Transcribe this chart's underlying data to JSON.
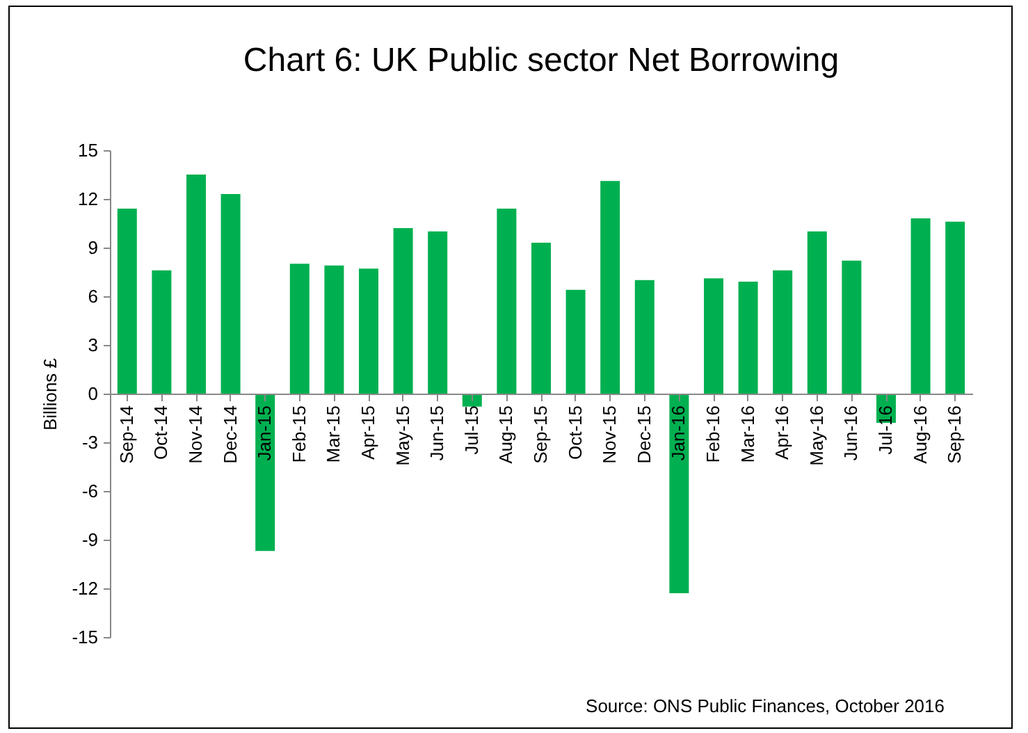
{
  "chart_data": {
    "type": "bar",
    "title": "Chart 6: UK Public sector Net Borrowing",
    "ylabel": "Billions £",
    "categories": [
      "Sep-14",
      "Oct-14",
      "Nov-14",
      "Dec-14",
      "Jan-15",
      "Feb-15",
      "Mar-15",
      "Apr-15",
      "May-15",
      "Jun-15",
      "Jul-15",
      "Aug-15",
      "Sep-15",
      "Oct-15",
      "Nov-15",
      "Dec-15",
      "Jan-16",
      "Feb-16",
      "Mar-16",
      "Apr-16",
      "May-16",
      "Jun-16",
      "Jul-16",
      "Aug-16",
      "Sep-16"
    ],
    "values": [
      11.4,
      7.6,
      13.5,
      12.3,
      -9.7,
      8.0,
      7.9,
      7.7,
      10.2,
      10.0,
      -0.8,
      11.4,
      9.3,
      6.4,
      13.1,
      7.0,
      -12.3,
      7.1,
      6.9,
      7.6,
      10.0,
      8.2,
      -1.8,
      10.8,
      10.6
    ],
    "color": "#00b050",
    "ylim": [
      -15,
      15
    ],
    "yticks": [
      -15,
      -12,
      -9,
      -6,
      -3,
      0,
      3,
      6,
      9,
      12,
      15
    ],
    "grid": false,
    "annotations": [
      "Source: ONS Public Finances, October 2016"
    ]
  }
}
